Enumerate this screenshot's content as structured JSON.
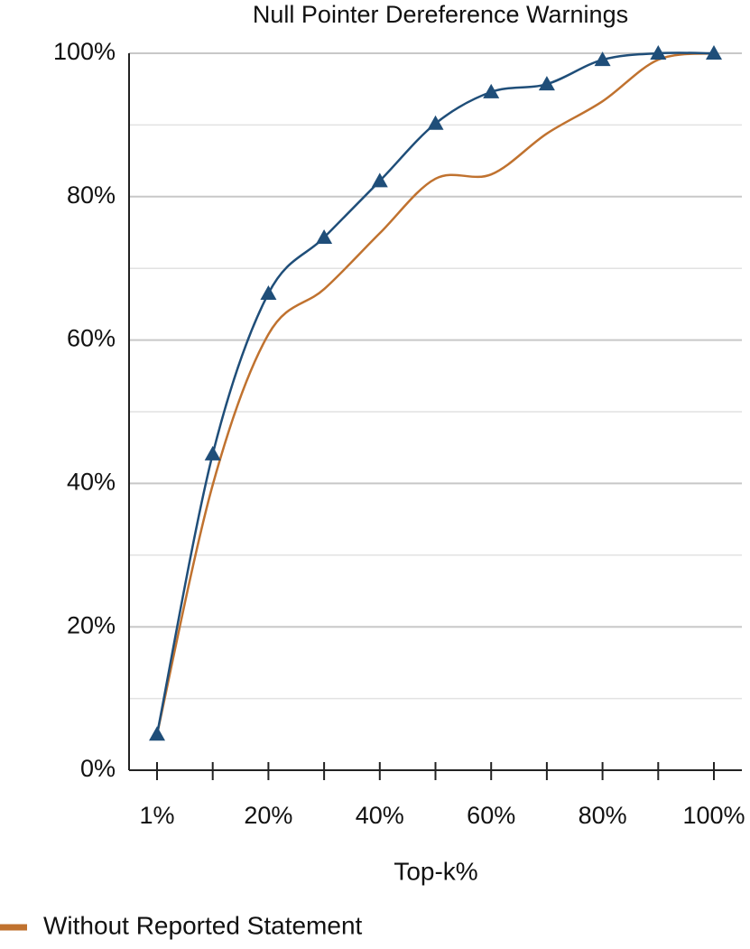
{
  "chart_data": {
    "type": "line",
    "title": "Null Pointer Dereference Warnings",
    "x_label": "Top-k%",
    "categories": [
      "1%",
      null,
      "20%",
      null,
      "40%",
      null,
      "60%",
      null,
      "80%",
      null,
      "100%"
    ],
    "series": [
      {
        "color": "#1f4e79",
        "marker": "triangle",
        "values": [
          5.0,
          44.1,
          66.5,
          74.3,
          82.2,
          90.2,
          94.6,
          95.7,
          99.1,
          100,
          100
        ]
      },
      {
        "name": "Without Reported Statement",
        "color": "#c0722f",
        "values": [
          5.0,
          39.8,
          60.8,
          67.1,
          74.9,
          82.5,
          83.1,
          88.8,
          93.3,
          99.1,
          100
        ]
      }
    ],
    "ylim": [
      0,
      100
    ],
    "yticks": [
      {
        "value": 0,
        "label": "0%"
      },
      {
        "value": 20,
        "label": "20%"
      },
      {
        "value": 40,
        "label": "40%"
      },
      {
        "value": 60,
        "label": "60%"
      },
      {
        "value": 80,
        "label": "80%"
      },
      {
        "value": 100,
        "label": "100%"
      }
    ],
    "minor_yticks": [
      10,
      30,
      50,
      70,
      90
    ],
    "grid": true,
    "smooth": true,
    "legend": "bottom-left"
  }
}
